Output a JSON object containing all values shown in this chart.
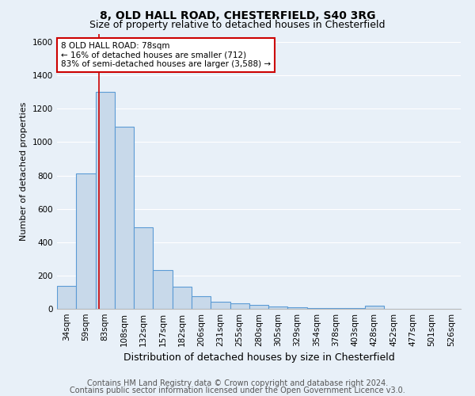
{
  "title1": "8, OLD HALL ROAD, CHESTERFIELD, S40 3RG",
  "title2": "Size of property relative to detached houses in Chesterfield",
  "xlabel": "Distribution of detached houses by size in Chesterfield",
  "ylabel": "Number of detached properties",
  "categories": [
    "34sqm",
    "59sqm",
    "83sqm",
    "108sqm",
    "132sqm",
    "157sqm",
    "182sqm",
    "206sqm",
    "231sqm",
    "255sqm",
    "280sqm",
    "305sqm",
    "329sqm",
    "354sqm",
    "378sqm",
    "403sqm",
    "428sqm",
    "452sqm",
    "477sqm",
    "501sqm",
    "526sqm"
  ],
  "values": [
    140,
    810,
    1300,
    1090,
    490,
    235,
    135,
    75,
    45,
    35,
    25,
    15,
    10,
    5,
    5,
    5,
    20,
    0,
    0,
    0,
    0
  ],
  "bar_color": "#c8d9ea",
  "bar_edge_color": "#5b9bd5",
  "red_line_x": 1.67,
  "annotation_text": "8 OLD HALL ROAD: 78sqm\n← 16% of detached houses are smaller (712)\n83% of semi-detached houses are larger (3,588) →",
  "annotation_box_color": "#ffffff",
  "annotation_box_edge": "#cc0000",
  "ylim": [
    0,
    1650
  ],
  "yticks": [
    0,
    200,
    400,
    600,
    800,
    1000,
    1200,
    1400,
    1600
  ],
  "footnote1": "Contains HM Land Registry data © Crown copyright and database right 2024.",
  "footnote2": "Contains public sector information licensed under the Open Government Licence v3.0.",
  "bg_color": "#e8f0f8",
  "plot_bg_color": "#e8f0f8",
  "grid_color": "#ffffff",
  "title1_fontsize": 10,
  "title2_fontsize": 9,
  "xlabel_fontsize": 9,
  "ylabel_fontsize": 8,
  "tick_fontsize": 7.5,
  "footnote_fontsize": 7
}
